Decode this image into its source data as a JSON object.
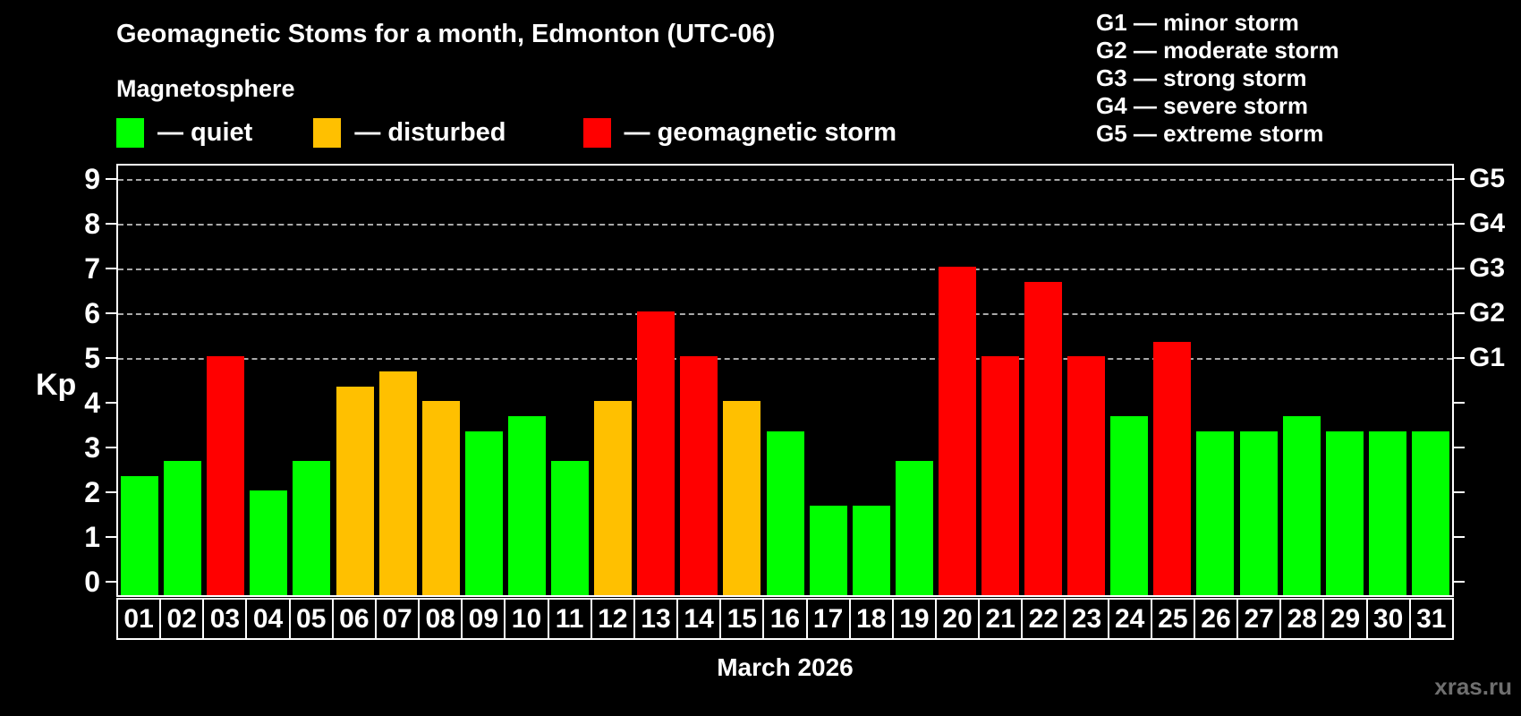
{
  "header": {
    "title": "Geomagnetic Stoms for a month, Edmonton (UTC-06)",
    "subtitle": "Magnetosphere",
    "legend": [
      {
        "state": "quiet",
        "label": "— quiet",
        "color": "#00ff00"
      },
      {
        "state": "disturbed",
        "label": "— disturbed",
        "color": "#ffc000"
      },
      {
        "state": "storm",
        "label": "— geomagnetic storm",
        "color": "#ff0000"
      }
    ],
    "g_legend": [
      "G1 — minor storm",
      "G2 — moderate storm",
      "G3 — strong storm",
      "G4 — severe storm",
      "G5 — extreme storm"
    ]
  },
  "chart_data": {
    "type": "bar",
    "title": "Geomagnetic Stoms for a month, Edmonton (UTC-06)",
    "ylabel": "Kp",
    "xlabel": "March 2026",
    "ylim": [
      0,
      9
    ],
    "yticks": [
      0,
      1,
      2,
      3,
      4,
      5,
      6,
      7,
      8,
      9
    ],
    "gridlines": [
      5,
      6,
      7,
      8,
      9
    ],
    "grid": "dashed, only at storm levels G1-G5",
    "legend_position": "top",
    "right_axis_labels": [
      {
        "label": "G1",
        "value": 5
      },
      {
        "label": "G2",
        "value": 6
      },
      {
        "label": "G3",
        "value": 7
      },
      {
        "label": "G4",
        "value": 8
      },
      {
        "label": "G5",
        "value": 9
      }
    ],
    "categories": [
      "01",
      "02",
      "03",
      "04",
      "05",
      "06",
      "07",
      "08",
      "09",
      "10",
      "11",
      "12",
      "13",
      "14",
      "15",
      "16",
      "17",
      "18",
      "19",
      "20",
      "21",
      "22",
      "23",
      "24",
      "25",
      "26",
      "27",
      "28",
      "29",
      "30",
      "31"
    ],
    "values": [
      2.33,
      2.67,
      5,
      2,
      2.67,
      4.33,
      4.67,
      4,
      3.33,
      3.67,
      2.67,
      4,
      6,
      5,
      4,
      3.33,
      1.67,
      1.67,
      2.67,
      7,
      5,
      6.67,
      5,
      3.67,
      5.33,
      3.33,
      3.33,
      3.67,
      3.33,
      3.33,
      3.33
    ],
    "states": [
      "quiet",
      "quiet",
      "storm",
      "quiet",
      "quiet",
      "disturbed",
      "disturbed",
      "disturbed",
      "quiet",
      "quiet",
      "quiet",
      "disturbed",
      "storm",
      "storm",
      "disturbed",
      "quiet",
      "quiet",
      "quiet",
      "quiet",
      "storm",
      "storm",
      "storm",
      "storm",
      "quiet",
      "storm",
      "quiet",
      "quiet",
      "quiet",
      "quiet",
      "quiet",
      "quiet"
    ],
    "colors": {
      "quiet": "#00ff00",
      "disturbed": "#ffc000",
      "storm": "#ff0000"
    }
  },
  "footer": {
    "xaxis_label": "March 2026",
    "watermark": "xras.ru"
  }
}
